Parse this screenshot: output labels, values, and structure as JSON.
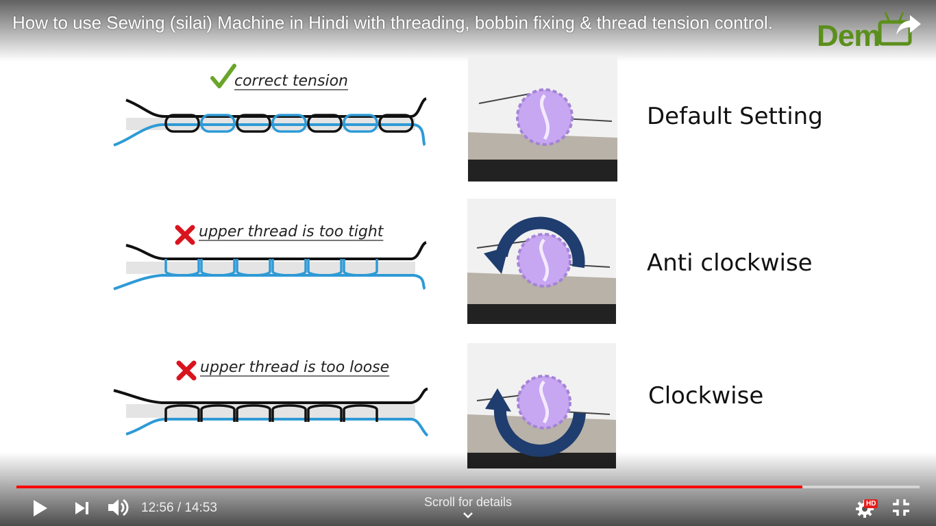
{
  "video": {
    "title": "How to use Sewing (silai) Machine in Hindi with threading, bobbin fixing & thread tension control.",
    "channel_logo_text": "Dem"
  },
  "slide": {
    "rows": [
      {
        "caption": "correct tension",
        "mark": "check-mark",
        "setting": "Default Setting"
      },
      {
        "caption": "upper thread is too tight",
        "mark": "cross-mark",
        "setting": "Anti clockwise"
      },
      {
        "caption": "upper thread is too loose",
        "mark": "cross-mark",
        "setting": "Clockwise"
      }
    ]
  },
  "player": {
    "current_time": "12:56",
    "separator": "/",
    "duration": "14:53",
    "progress_fraction": 0.87,
    "scroll_hint": "Scroll for details",
    "quality_badge": "HD"
  },
  "colors": {
    "upper_thread": "#111111",
    "bobbin_thread": "#2e9ad6",
    "progress": "#ff0000",
    "check": "#6aa52a",
    "cross": "#d9141e",
    "knob": "#c7a6f2",
    "arrow": "#1f3d6e",
    "logo": "#5b8f1c"
  }
}
